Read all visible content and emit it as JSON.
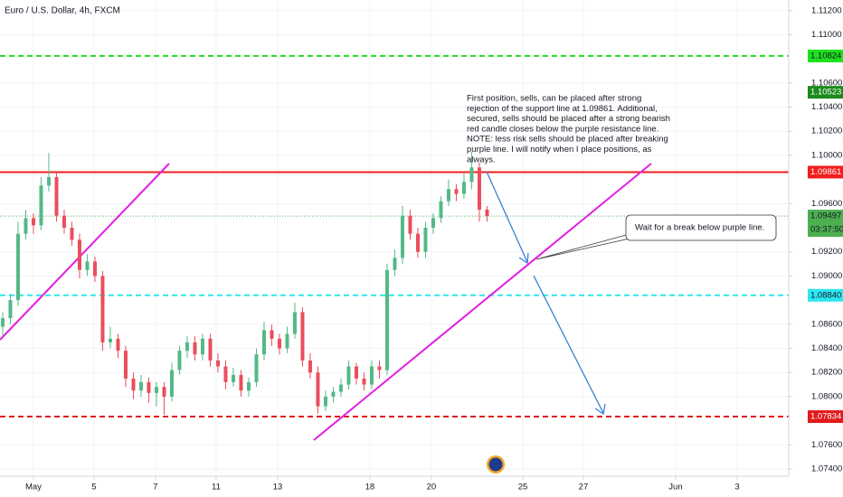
{
  "chart_data": {
    "type": "candlestick",
    "title": "Euro / U.S. Dollar, 4h, FXCM",
    "up_color": "#53b987",
    "down_color": "#eb4d5c",
    "candles": {
      "open": [
        1.0858,
        1.0865,
        1.088,
        1.0935,
        1.0948,
        1.0942,
        1.0975,
        1.0982,
        1.095,
        1.094,
        1.093,
        1.0905,
        1.0912,
        1.09,
        1.0845,
        1.0848,
        1.0838,
        1.0815,
        1.0805,
        1.0812,
        1.0803,
        1.0808,
        1.08,
        1.0822,
        1.0838,
        1.0845,
        1.0835,
        1.0848,
        1.083,
        1.0825,
        1.0812,
        1.0818,
        1.0805,
        1.0812,
        1.0835,
        1.0855,
        1.0848,
        1.084,
        1.0852,
        1.087,
        1.083,
        1.082,
        1.0792,
        1.08,
        1.0804,
        1.081,
        1.0825,
        1.0815,
        1.081,
        1.0825,
        1.0822,
        1.0905,
        1.0915,
        1.095,
        1.0935,
        1.092,
        1.094,
        1.0948,
        1.0962,
        1.0972,
        1.0968,
        1.0978,
        1.099,
        1.0955
      ],
      "high": [
        1.087,
        1.0885,
        1.0945,
        1.0955,
        1.0952,
        1.0982,
        1.1002,
        1.0986,
        1.0955,
        1.0945,
        1.0935,
        1.0918,
        1.0916,
        1.0904,
        1.0858,
        1.0852,
        1.0842,
        1.082,
        1.0818,
        1.0816,
        1.0812,
        1.0812,
        1.0828,
        1.0842,
        1.085,
        1.085,
        1.0852,
        1.0852,
        1.0836,
        1.083,
        1.0824,
        1.0822,
        1.0816,
        1.084,
        1.0862,
        1.086,
        1.0852,
        1.0858,
        1.0878,
        1.0874,
        1.0836,
        1.0825,
        1.0805,
        1.0808,
        1.0815,
        1.083,
        1.0828,
        1.082,
        1.083,
        1.083,
        1.091,
        1.0922,
        1.0958,
        1.0955,
        1.094,
        1.0945,
        1.0952,
        1.0966,
        1.098,
        1.0976,
        1.0985,
        1.1003,
        1.0994,
        1.0958
      ],
      "low": [
        1.085,
        1.086,
        1.0875,
        1.093,
        1.0935,
        1.0938,
        1.097,
        1.0945,
        1.0935,
        1.0925,
        1.0898,
        1.09,
        1.0895,
        1.0838,
        1.084,
        1.0832,
        1.0808,
        1.0798,
        1.08,
        1.0795,
        1.0792,
        1.0785,
        1.0796,
        1.0818,
        1.0832,
        1.083,
        1.083,
        1.0825,
        1.082,
        1.0806,
        1.0808,
        1.08,
        1.08,
        1.0808,
        1.083,
        1.0842,
        1.0835,
        1.0836,
        1.0848,
        1.0825,
        1.0815,
        1.0786,
        1.0788,
        1.0795,
        1.08,
        1.0806,
        1.081,
        1.0805,
        1.0806,
        1.0815,
        1.0818,
        1.09,
        1.091,
        1.093,
        1.0915,
        1.0915,
        1.0935,
        1.0944,
        1.0958,
        1.0962,
        1.0964,
        1.0972,
        1.0945,
        1.0945
      ],
      "close": [
        1.0865,
        1.088,
        1.0935,
        1.0948,
        1.0942,
        1.0975,
        1.0982,
        1.095,
        1.094,
        1.093,
        1.0905,
        1.0912,
        1.09,
        1.0845,
        1.0848,
        1.0838,
        1.0815,
        1.0805,
        1.0812,
        1.0803,
        1.0808,
        1.08,
        1.0822,
        1.0838,
        1.0845,
        1.0835,
        1.0848,
        1.083,
        1.0825,
        1.0812,
        1.0818,
        1.0805,
        1.0812,
        1.0835,
        1.0855,
        1.0848,
        1.084,
        1.0852,
        1.087,
        1.083,
        1.082,
        1.0792,
        1.08,
        1.0804,
        1.081,
        1.0825,
        1.0815,
        1.081,
        1.0825,
        1.0822,
        1.0905,
        1.0915,
        1.095,
        1.0935,
        1.092,
        1.094,
        1.0948,
        1.0962,
        1.0972,
        1.0968,
        1.0978,
        1.099,
        1.0955,
        1.09497
      ]
    },
    "xlim": [
      -0.35,
      102.24
    ],
    "xticks": [
      {
        "value": 4,
        "label": "May"
      },
      {
        "value": 11.88,
        "label": "5"
      },
      {
        "value": 19.88,
        "label": "7"
      },
      {
        "value": 27.76,
        "label": "11"
      },
      {
        "value": 35.76,
        "label": "13"
      },
      {
        "value": 47.76,
        "label": "18"
      },
      {
        "value": 55.76,
        "label": "20"
      },
      {
        "value": 67.65,
        "label": "25"
      },
      {
        "value": 75.53,
        "label": "27"
      },
      {
        "value": 87.53,
        "label": "Jun"
      },
      {
        "value": 95.53,
        "label": "3"
      }
    ],
    "ylim": [
      1.0734,
      1.11288
    ],
    "yticks": [
      {
        "value": 1.112,
        "label": "1.11200"
      },
      {
        "value": 1.11,
        "label": "1.11000"
      },
      {
        "value": 1.106,
        "label": "1.10600"
      },
      {
        "value": 1.104,
        "label": "1.10400"
      },
      {
        "value": 1.102,
        "label": "1.10200"
      },
      {
        "value": 1.1,
        "label": "1.10000"
      },
      {
        "value": 1.096,
        "label": "1.09600"
      },
      {
        "value": 1.092,
        "label": "1.09200"
      },
      {
        "value": 1.09,
        "label": "1.09000"
      },
      {
        "value": 1.086,
        "label": "1.08600"
      },
      {
        "value": 1.084,
        "label": "1.08400"
      },
      {
        "value": 1.082,
        "label": "1.08200"
      },
      {
        "value": 1.08,
        "label": "1.08000"
      },
      {
        "value": 1.076,
        "label": "1.07600"
      },
      {
        "value": 1.074,
        "label": "1.07400"
      }
    ],
    "grid": true,
    "levels": [
      {
        "value": 1.10824,
        "color": "#1fe01f",
        "text_color": "#131722",
        "style": "dashed"
      },
      {
        "value": 1.10523,
        "color": "#1b8a1b",
        "text_color": "#ffffff",
        "style": "none"
      },
      {
        "value": 1.09861,
        "color": "#f21d1d",
        "text_color": "#ffffff",
        "style": "solid"
      },
      {
        "value": 1.09497,
        "color": "#4caf50",
        "text_color": "#131722",
        "style": "dotted"
      },
      {
        "value": 1.0884,
        "label": "1.08840",
        "color": "#2ee6f0",
        "text_color": "#131722",
        "style": "dashed"
      },
      {
        "value": 1.07834,
        "color": "#e01b1b",
        "text_color": "#ffffff",
        "style": "dashed"
      }
    ],
    "countdown": "03:37:50",
    "note_lines": [
      "First position, sells, can be placed after strong",
      "rejection of the support line at 1.09861. Additional,",
      "secured, sells should be placed after a strong bearish",
      "red candle closes below the purple resistance line.",
      "NOTE: less risk sells should be placed after breaking",
      "purple line. I will notify when I place positions, as",
      "always."
    ],
    "callout": "Wait for a break below purple line."
  }
}
